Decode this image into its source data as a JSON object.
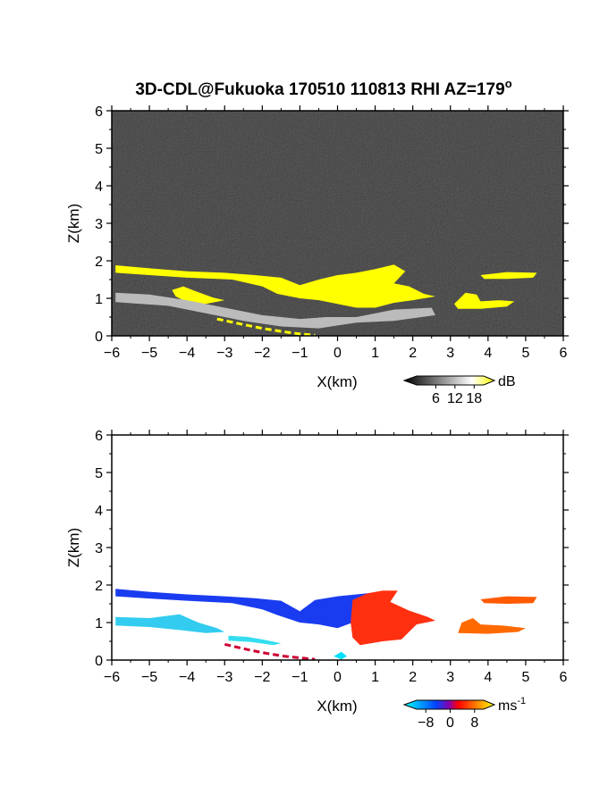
{
  "chart_data": [
    {
      "type": "heatmap",
      "title": "3D-CDL@Fukuoka 170510 110813 RHI AZ=179",
      "title_superscript": "o",
      "xlabel": "X(km)",
      "ylabel": "Z(km)",
      "xlim": [
        -6,
        6
      ],
      "ylim": [
        0,
        6
      ],
      "x_ticks": [
        -6,
        -5,
        -4,
        -3,
        -2,
        -1,
        0,
        1,
        2,
        3,
        4,
        5,
        6
      ],
      "y_ticks": [
        0,
        1,
        2,
        3,
        4,
        5,
        6
      ],
      "background_color": "#2b2b2b",
      "colorbar": {
        "unit": "dB",
        "ticks": [
          6,
          12,
          18
        ],
        "range": [
          0,
          21
        ],
        "colors": [
          "#000000",
          "#ffffff",
          "#ffff00"
        ]
      },
      "features": [
        {
          "name": "upper-layer",
          "color": "#ffff00",
          "polygon": [
            [
              -5.9,
              1.88
            ],
            [
              -5,
              1.8
            ],
            [
              -4,
              1.72
            ],
            [
              -3,
              1.68
            ],
            [
              -2.2,
              1.62
            ],
            [
              -1.5,
              1.55
            ],
            [
              -1,
              1.35
            ],
            [
              -0.5,
              1.5
            ],
            [
              0,
              1.62
            ],
            [
              0.5,
              1.68
            ],
            [
              1,
              1.78
            ],
            [
              1.5,
              1.9
            ],
            [
              1.8,
              1.72
            ],
            [
              1.5,
              1.4
            ],
            [
              1.9,
              1.32
            ],
            [
              2.3,
              1.12
            ],
            [
              2.6,
              1.05
            ],
            [
              2,
              0.95
            ],
            [
              1.5,
              0.88
            ],
            [
              1,
              0.75
            ],
            [
              0.5,
              0.75
            ],
            [
              0,
              0.85
            ],
            [
              -0.5,
              0.95
            ],
            [
              -1,
              1
            ],
            [
              -1.6,
              1.12
            ],
            [
              -2,
              1.32
            ],
            [
              -2.8,
              1.5
            ],
            [
              -4,
              1.55
            ],
            [
              -5,
              1.62
            ],
            [
              -5.9,
              1.68
            ]
          ]
        },
        {
          "name": "lower-layer",
          "color": "#ffff00",
          "polygon": [
            [
              -4.4,
              1.22
            ],
            [
              -4.1,
              1.32
            ],
            [
              -3.8,
              1.2
            ],
            [
              -3.3,
              1.02
            ],
            [
              -3,
              0.95
            ],
            [
              -3.5,
              0.85
            ],
            [
              -4,
              0.9
            ],
            [
              -4.3,
              1.05
            ]
          ]
        },
        {
          "name": "right-patch-upper",
          "color": "#ffff00",
          "polygon": [
            [
              3.8,
              1.62
            ],
            [
              4.5,
              1.7
            ],
            [
              5.3,
              1.68
            ],
            [
              5.2,
              1.55
            ],
            [
              4.5,
              1.52
            ],
            [
              3.9,
              1.52
            ]
          ]
        },
        {
          "name": "right-patch-lower",
          "color": "#ffff00",
          "polygon": [
            [
              3.1,
              0.85
            ],
            [
              3.4,
              1.15
            ],
            [
              3.7,
              1.1
            ],
            [
              3.8,
              0.92
            ],
            [
              4.3,
              0.95
            ],
            [
              4.7,
              0.92
            ],
            [
              4.5,
              0.78
            ],
            [
              3.8,
              0.72
            ],
            [
              3.2,
              0.72
            ]
          ]
        },
        {
          "name": "aerosol-layer",
          "color": "#bbbbbb",
          "polygon": [
            [
              -5.9,
              1.15
            ],
            [
              -5,
              1.1
            ],
            [
              -4,
              0.95
            ],
            [
              -3,
              0.75
            ],
            [
              -2,
              0.55
            ],
            [
              -1,
              0.45
            ],
            [
              -0.3,
              0.5
            ],
            [
              0.5,
              0.5
            ],
            [
              1.5,
              0.7
            ],
            [
              2.5,
              0.75
            ],
            [
              2.6,
              0.55
            ],
            [
              1.5,
              0.4
            ],
            [
              0.5,
              0.35
            ],
            [
              -0.5,
              0.2
            ],
            [
              -1.5,
              0.25
            ],
            [
              -2.5,
              0.4
            ],
            [
              -3.5,
              0.6
            ],
            [
              -4.5,
              0.8
            ],
            [
              -5.9,
              0.9
            ]
          ]
        },
        {
          "name": "ground-clutter",
          "color": "#ffff00",
          "polyline": [
            [
              -3.2,
              0.45
            ],
            [
              -2.5,
              0.3
            ],
            [
              -2,
              0.2
            ],
            [
              -1.5,
              0.12
            ],
            [
              -1,
              0.05
            ],
            [
              -0.6,
              0.02
            ]
          ]
        }
      ]
    },
    {
      "type": "heatmap",
      "xlabel": "X(km)",
      "ylabel": "Z(km)",
      "xlim": [
        -6,
        6
      ],
      "ylim": [
        0,
        6
      ],
      "x_ticks": [
        -6,
        -5,
        -4,
        -3,
        -2,
        -1,
        0,
        1,
        2,
        3,
        4,
        5,
        6
      ],
      "y_ticks": [
        0,
        1,
        2,
        3,
        4,
        5,
        6
      ],
      "background_color": "#ffffff",
      "colorbar": {
        "unit": "ms",
        "unit_superscript": "-1",
        "ticks": [
          -8,
          0,
          8
        ],
        "range": [
          -11,
          11
        ],
        "colors": [
          "#00ffff",
          "#0044ff",
          "#ff0000",
          "#ffff00"
        ]
      },
      "features": [
        {
          "name": "negative-upper-layer",
          "color": "#1a3cf0",
          "polygon": [
            [
              -5.9,
              1.9
            ],
            [
              -5,
              1.82
            ],
            [
              -4,
              1.75
            ],
            [
              -3,
              1.7
            ],
            [
              -2.2,
              1.65
            ],
            [
              -1.5,
              1.58
            ],
            [
              -1,
              1.3
            ],
            [
              -0.6,
              1.6
            ],
            [
              0,
              1.7
            ],
            [
              0.5,
              1.75
            ],
            [
              1,
              1.8
            ],
            [
              0.7,
              1.3
            ],
            [
              0.4,
              1
            ],
            [
              0,
              0.85
            ],
            [
              -0.5,
              0.95
            ],
            [
              -1,
              1
            ],
            [
              -1.6,
              1.2
            ],
            [
              -2,
              1.35
            ],
            [
              -2.8,
              1.52
            ],
            [
              -4,
              1.58
            ],
            [
              -5,
              1.64
            ],
            [
              -5.9,
              1.7
            ]
          ]
        },
        {
          "name": "positive-core",
          "color": "#ff3010",
          "polygon": [
            [
              0.4,
              1.6
            ],
            [
              0.8,
              1.78
            ],
            [
              1.2,
              1.85
            ],
            [
              1.6,
              1.85
            ],
            [
              1.4,
              1.55
            ],
            [
              1.9,
              1.32
            ],
            [
              2.4,
              1.15
            ],
            [
              2.6,
              1.05
            ],
            [
              2.1,
              0.95
            ],
            [
              1.7,
              0.55
            ],
            [
              1.2,
              0.5
            ],
            [
              0.6,
              0.4
            ],
            [
              0.4,
              0.6
            ],
            [
              0.35,
              1
            ]
          ]
        },
        {
          "name": "right-patch-upper",
          "color": "#ff5a00",
          "polygon": [
            [
              3.8,
              1.62
            ],
            [
              4.5,
              1.7
            ],
            [
              5.3,
              1.68
            ],
            [
              5.2,
              1.52
            ],
            [
              4.5,
              1.5
            ],
            [
              3.9,
              1.52
            ]
          ]
        },
        {
          "name": "right-patch-lower",
          "color": "#ff6a00",
          "polygon": [
            [
              3.2,
              0.72
            ],
            [
              3.3,
              1
            ],
            [
              3.6,
              1.12
            ],
            [
              3.8,
              0.95
            ],
            [
              4.4,
              0.92
            ],
            [
              5,
              0.85
            ],
            [
              4.8,
              0.75
            ],
            [
              4,
              0.7
            ]
          ]
        },
        {
          "name": "negative-lower-layer",
          "color": "#33ccf0",
          "polygon": [
            [
              -5.9,
              1.15
            ],
            [
              -5,
              1.12
            ],
            [
              -4.2,
              1.22
            ],
            [
              -3.7,
              1.0
            ],
            [
              -3.2,
              0.85
            ],
            [
              -3,
              0.75
            ],
            [
              -3.5,
              0.72
            ],
            [
              -4.2,
              0.8
            ],
            [
              -5,
              0.88
            ],
            [
              -5.9,
              0.92
            ]
          ]
        },
        {
          "name": "negative-wisps",
          "color": "#33ddf0",
          "polygon": [
            [
              -2.9,
              0.65
            ],
            [
              -2.4,
              0.62
            ],
            [
              -2,
              0.55
            ],
            [
              -1.5,
              0.45
            ],
            [
              -1.7,
              0.4
            ],
            [
              -2.3,
              0.48
            ],
            [
              -2.9,
              0.52
            ]
          ]
        },
        {
          "name": "near-zero-bottom",
          "color": "#00e0ff",
          "polygon": [
            [
              -0.1,
              0.1
            ],
            [
              0.1,
              0.22
            ],
            [
              0.25,
              0.1
            ],
            [
              0.1,
              0.02
            ]
          ]
        },
        {
          "name": "ground-clutter",
          "color": "#cc0033",
          "polyline": [
            [
              -3.0,
              0.42
            ],
            [
              -2.4,
              0.28
            ],
            [
              -1.9,
              0.18
            ],
            [
              -1.4,
              0.1
            ],
            [
              -0.9,
              0.05
            ],
            [
              -0.6,
              0.02
            ]
          ]
        }
      ]
    }
  ]
}
